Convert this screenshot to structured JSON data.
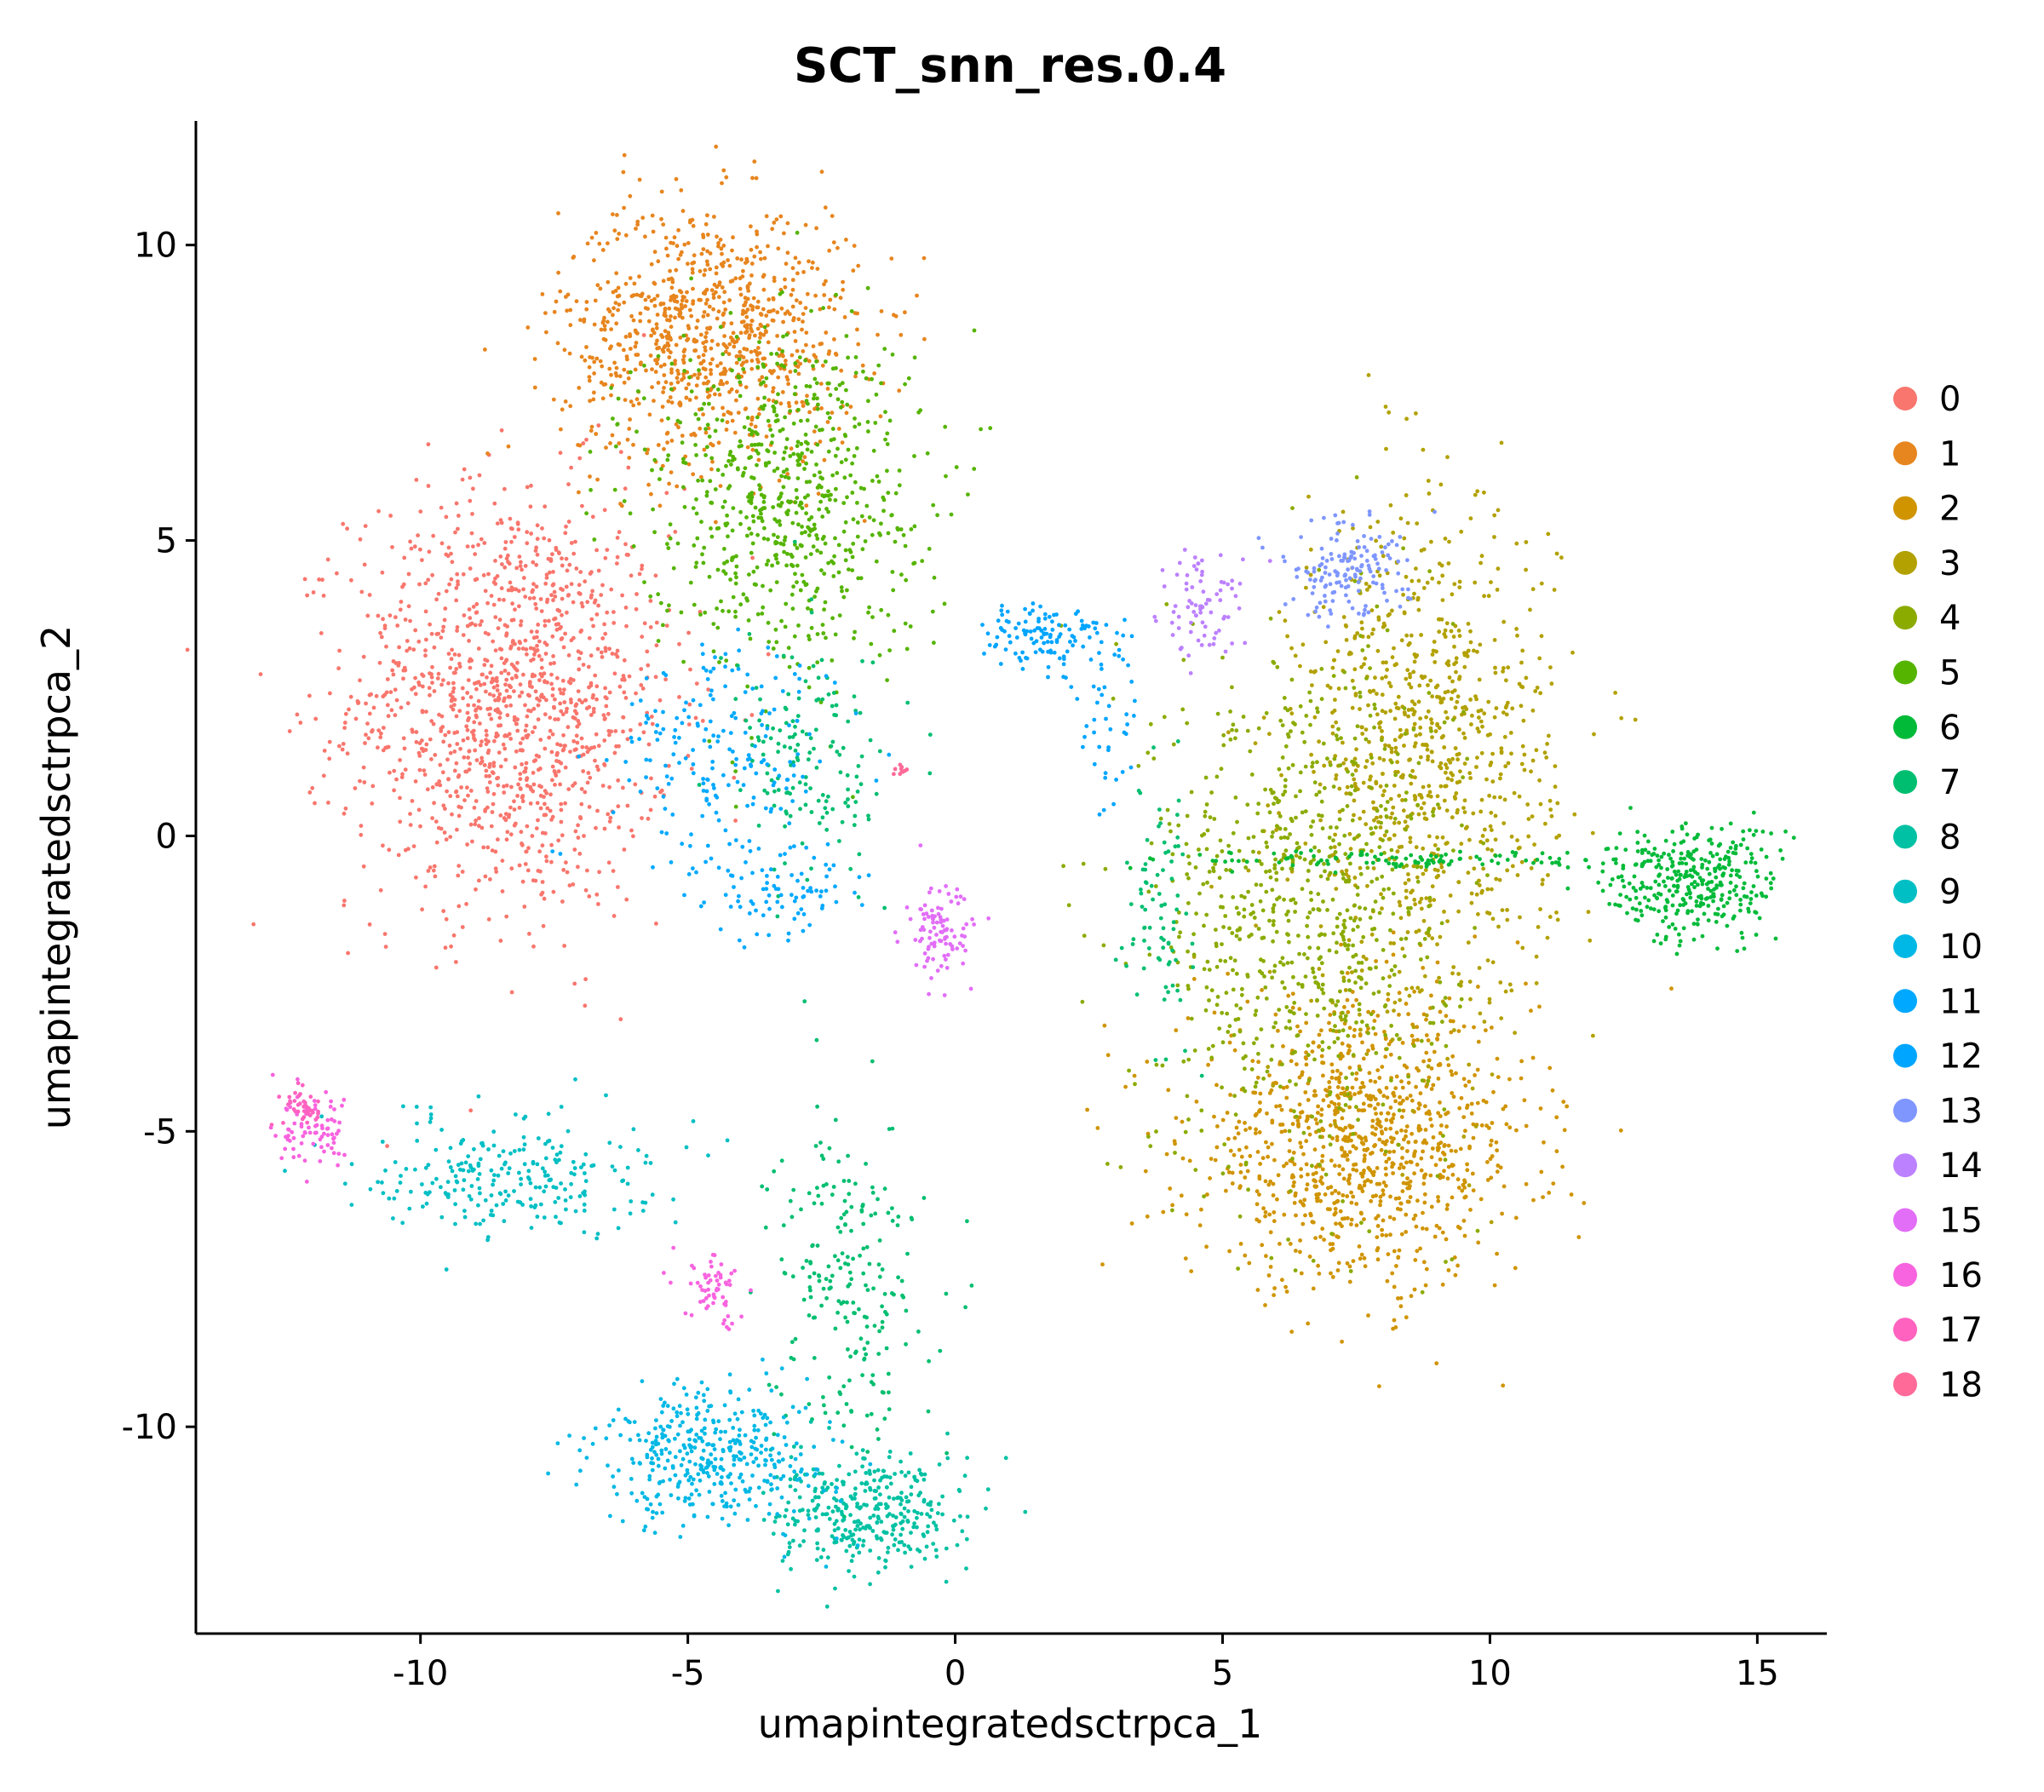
{
  "chart_data": {
    "type": "scatter",
    "title": "SCT_snn_res.0.4",
    "xlabel": "umapintegratedsctrpca_1",
    "ylabel": "umapintegratedsctrpca_2",
    "xlim": [
      -14.2,
      16.3
    ],
    "ylim": [
      -13.5,
      12.1
    ],
    "x_ticks": [
      -10,
      -5,
      0,
      5,
      10,
      15
    ],
    "x_tick_labels": [
      "-10",
      "-5",
      "0",
      "5",
      "10",
      "15"
    ],
    "y_ticks": [
      -10,
      -5,
      0,
      5,
      10
    ],
    "y_tick_labels": [
      "-10",
      "-5",
      "0",
      "5",
      "10"
    ],
    "grid": false,
    "legend_position": "right",
    "series": [
      {
        "name": "0",
        "color": "#F8766D",
        "regions": [
          {
            "cx": -8.3,
            "cy": 2.3,
            "sx": 1.5,
            "sy": 1.8,
            "n": 1300
          }
        ]
      },
      {
        "name": "1",
        "color": "#E7851E",
        "regions": [
          {
            "cx": -4.6,
            "cy": 8.5,
            "sx": 1.4,
            "sy": 1.1,
            "n": 900
          }
        ]
      },
      {
        "name": "2",
        "color": "#D09400",
        "regions": [
          {
            "cx": 7.6,
            "cy": -5.2,
            "sx": 1.6,
            "sy": 1.2,
            "n": 1000
          }
        ]
      },
      {
        "name": "3",
        "color": "#B2A100",
        "regions": [
          {
            "cx": 8.8,
            "cy": 1.2,
            "sx": 1.2,
            "sy": 2.2,
            "n": 900
          }
        ]
      },
      {
        "name": "4",
        "color": "#8BAB00",
        "regions": [
          {
            "cx": 6.5,
            "cy": -1.2,
            "sx": 1.4,
            "sy": 2.2,
            "n": 800
          }
        ]
      },
      {
        "name": "5",
        "color": "#55B400",
        "regions": [
          {
            "cx": -3.2,
            "cy": 5.8,
            "sx": 1.3,
            "sy": 1.5,
            "n": 700
          }
        ]
      },
      {
        "name": "6",
        "color": "#00BA38",
        "regions": [
          {
            "cx": 13.8,
            "cy": -0.8,
            "sx": 0.8,
            "sy": 0.5,
            "n": 350
          },
          {
            "cx": 9.0,
            "cy": -0.4,
            "sx": 2.6,
            "sy": 0.08,
            "n": 120
          }
        ]
      },
      {
        "name": "7",
        "color": "#00BE70",
        "regions": [
          {
            "cx": -2.7,
            "cy": 1.2,
            "sx": 0.7,
            "sy": 1.0,
            "n": 150
          },
          {
            "cx": -2.0,
            "cy": -7.5,
            "sx": 0.7,
            "sy": 1.4,
            "n": 220
          },
          {
            "cx": 3.8,
            "cy": -1.2,
            "sx": 0.3,
            "sy": 1.0,
            "n": 80
          }
        ]
      },
      {
        "name": "8",
        "color": "#00C1A3",
        "regions": [
          {
            "cx": -1.6,
            "cy": -11.5,
            "sx": 0.9,
            "sy": 0.5,
            "n": 350
          }
        ]
      },
      {
        "name": "9",
        "color": "#00BFC4",
        "regions": [
          {
            "cx": -8.3,
            "cy": -5.7,
            "sx": 1.3,
            "sy": 0.5,
            "n": 250
          }
        ]
      },
      {
        "name": "10",
        "color": "#00B8E5",
        "regions": [
          {
            "cx": -4.5,
            "cy": -10.5,
            "sx": 1.1,
            "sy": 0.6,
            "n": 400
          }
        ]
      },
      {
        "name": "11",
        "color": "#00A9FF",
        "regions": [
          {
            "cx": -4.3,
            "cy": 1.3,
            "sx": 1.0,
            "sy": 1.0,
            "n": 200
          },
          {
            "cx": -3.2,
            "cy": -0.9,
            "sx": 0.8,
            "sy": 0.4,
            "n": 80
          }
        ]
      },
      {
        "name": "12",
        "color": "#00A5FF",
        "regions": [
          {
            "cx": 1.7,
            "cy": 3.4,
            "sx": 0.6,
            "sy": 0.3,
            "n": 120
          },
          {
            "cx": 2.8,
            "cy": 1.8,
            "sx": 0.3,
            "sy": 0.9,
            "n": 40
          }
        ]
      },
      {
        "name": "13",
        "color": "#7F96FF",
        "regions": [
          {
            "cx": 7.3,
            "cy": 4.5,
            "sx": 0.6,
            "sy": 0.4,
            "n": 150
          }
        ]
      },
      {
        "name": "14",
        "color": "#BC81FF",
        "regions": [
          {
            "cx": 4.6,
            "cy": 3.8,
            "sx": 0.4,
            "sy": 0.5,
            "n": 80
          }
        ]
      },
      {
        "name": "15",
        "color": "#E26EF7",
        "regions": [
          {
            "cx": -0.3,
            "cy": -1.7,
            "sx": 0.3,
            "sy": 0.4,
            "n": 100
          }
        ]
      },
      {
        "name": "16",
        "color": "#F863DF",
        "regions": [
          {
            "cx": -4.5,
            "cy": -7.7,
            "sx": 0.3,
            "sy": 0.3,
            "n": 60
          },
          {
            "cx": -11.9,
            "cy": -5.0,
            "sx": 0.4,
            "sy": 0.3,
            "n": 80
          }
        ]
      },
      {
        "name": "17",
        "color": "#FF62BF",
        "regions": [
          {
            "cx": -12.2,
            "cy": -4.6,
            "sx": 0.2,
            "sy": 0.15,
            "n": 40
          }
        ]
      },
      {
        "name": "18",
        "color": "#FF6A98",
        "regions": [
          {
            "cx": -1.0,
            "cy": 1.1,
            "sx": 0.1,
            "sy": 0.05,
            "n": 10
          }
        ]
      }
    ]
  }
}
